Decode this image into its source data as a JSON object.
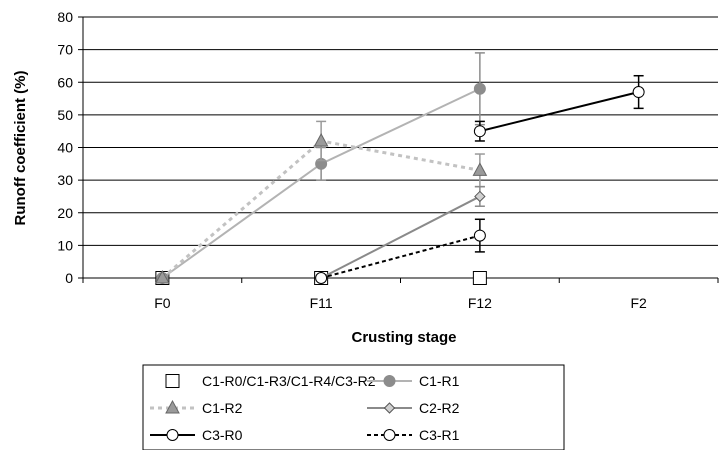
{
  "chart_data": {
    "type": "line",
    "title": "",
    "xlabel": "Crusting stage",
    "ylabel": "Runoff coefficient (%)",
    "categories": [
      "F0",
      "F11",
      "F12",
      "F2"
    ],
    "ylim": [
      0,
      80
    ],
    "yticks": [
      0,
      10,
      20,
      30,
      40,
      50,
      60,
      70,
      80
    ],
    "grid": "horizontal",
    "legend_position": "bottom",
    "series": [
      {
        "name": "C1-R0/C1-R3/C1-R4/C3-R2",
        "values": [
          0,
          0,
          0,
          null
        ],
        "errors": [
          null,
          null,
          null,
          null
        ],
        "color": "#000000",
        "line": "none",
        "marker": "square-open"
      },
      {
        "name": "C1-R1",
        "values": [
          0,
          35,
          58,
          null
        ],
        "errors": [
          null,
          5,
          11,
          null
        ],
        "color": "#b3b3b3",
        "marker_color": "#8c8c8c",
        "line": "solid",
        "marker": "circle-filled"
      },
      {
        "name": "C1-R2",
        "values": [
          0,
          42,
          33,
          null
        ],
        "errors": [
          null,
          6,
          5,
          null
        ],
        "color": "#c2c2c2",
        "marker_color": "#9a9a9a",
        "line": "dashed",
        "marker": "triangle-filled"
      },
      {
        "name": "C2-R2",
        "values": [
          null,
          0,
          25,
          null
        ],
        "errors": [
          null,
          null,
          3,
          null
        ],
        "color": "#8a8a8a",
        "line": "solid",
        "marker": "diamond"
      },
      {
        "name": "C3-R0",
        "values": [
          null,
          null,
          45,
          57
        ],
        "errors": [
          null,
          null,
          3,
          5
        ],
        "color": "#000000",
        "line": "solid",
        "marker": "circle-open"
      },
      {
        "name": "C3-R1",
        "values": [
          null,
          0,
          13,
          null
        ],
        "errors": [
          null,
          null,
          5,
          null
        ],
        "color": "#000000",
        "line": "dashed-bold",
        "marker": "circle-open"
      }
    ]
  }
}
